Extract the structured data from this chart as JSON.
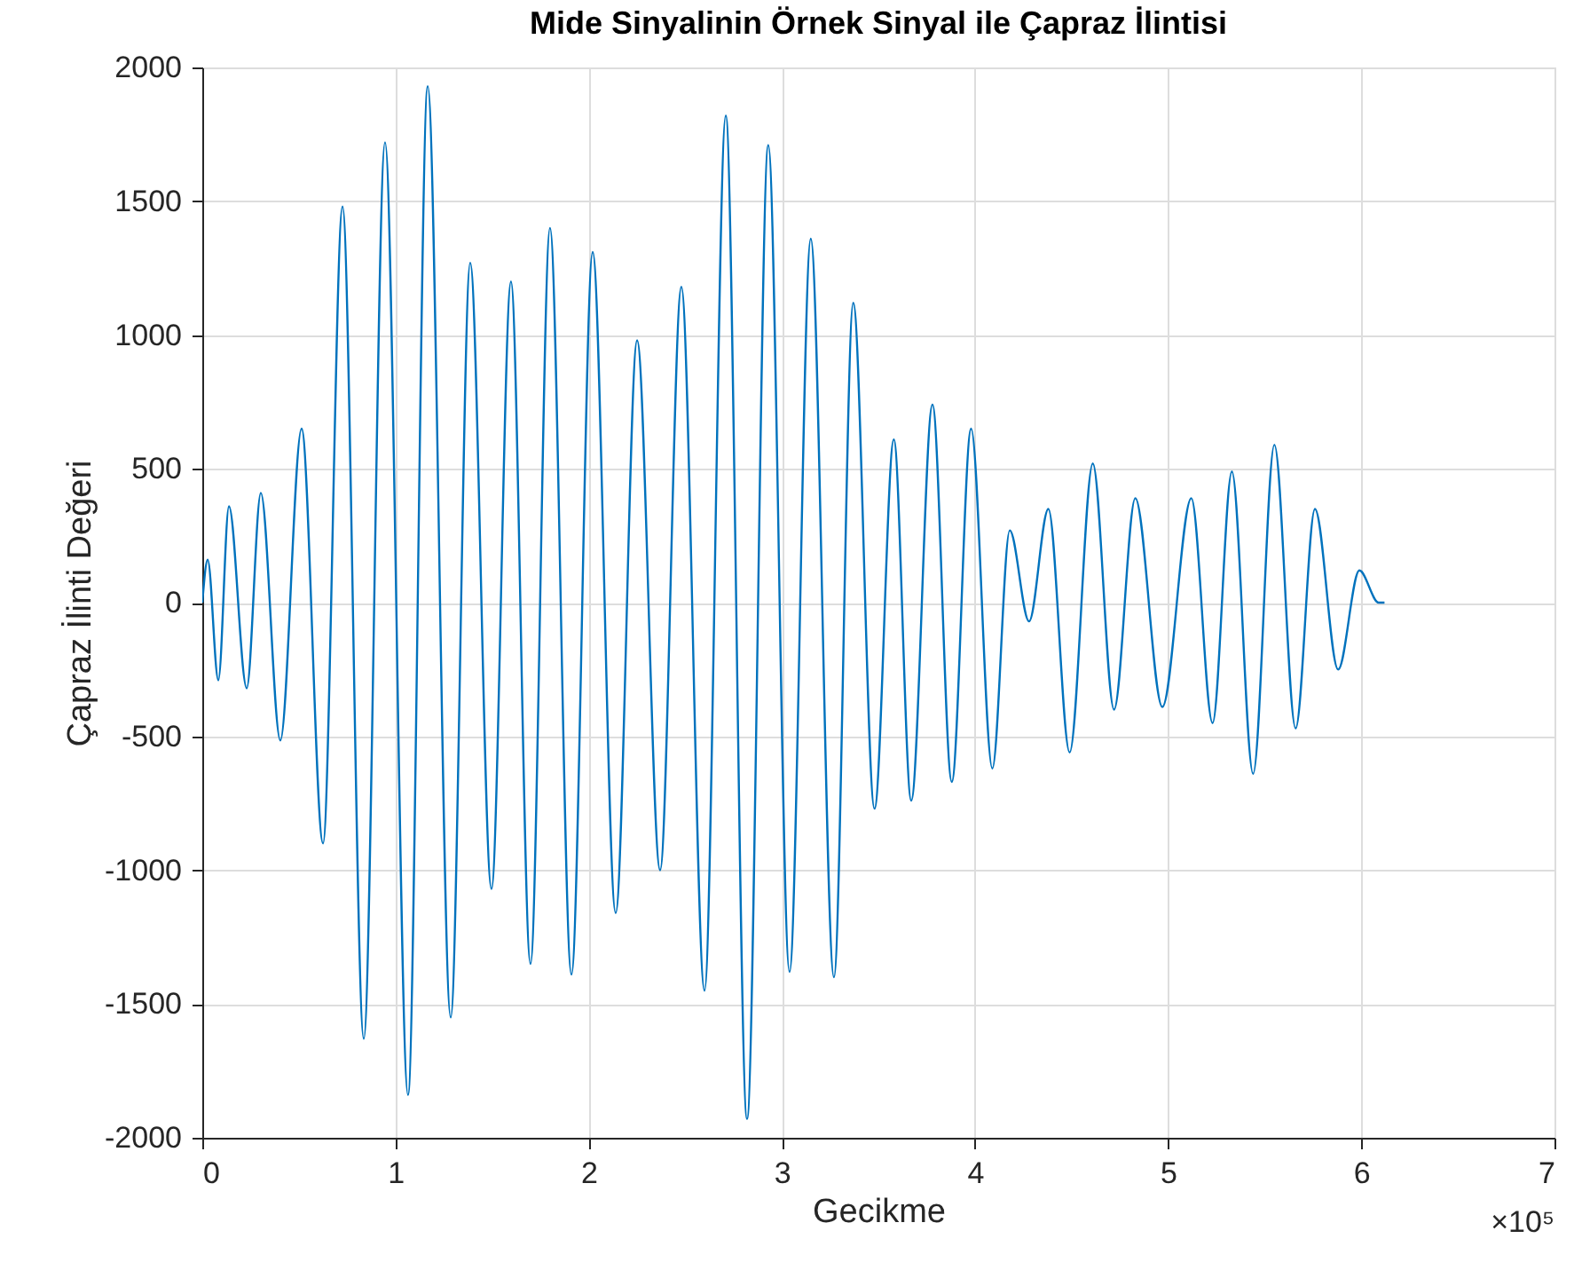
{
  "chart_data": {
    "type": "line",
    "title": "Mide Sinyalinin Örnek Sinyal ile Çapraz İlintisi",
    "xlabel": "Gecikme",
    "ylabel": "Çapraz İlinti Değeri",
    "x": [
      0,
      0.028,
      0.083,
      0.138,
      0.23,
      0.303,
      0.404,
      0.514,
      0.625,
      0.726,
      0.836,
      0.946,
      1.065,
      1.167,
      1.286,
      1.387,
      1.497,
      1.598,
      1.699,
      1.8,
      1.911,
      2.021,
      2.14,
      2.251,
      2.37,
      2.48,
      2.6,
      2.71,
      2.82,
      2.93,
      3.04,
      3.15,
      3.27,
      3.37,
      3.48,
      3.58,
      3.67,
      3.78,
      3.88,
      3.98,
      4.09,
      4.18,
      4.28,
      4.38,
      4.49,
      4.61,
      4.72,
      4.83,
      4.97,
      5.12,
      5.23,
      5.33,
      5.44,
      5.55,
      5.66,
      5.76,
      5.88,
      5.99,
      6.09,
      6.12
    ],
    "series": [
      {
        "color": "#0072bd",
        "values": [
          0,
          160,
          -290,
          360,
          -320,
          410,
          -515,
          650,
          -900,
          1480,
          -1630,
          1720,
          -1840,
          1930,
          -1550,
          1270,
          -1070,
          1200,
          -1350,
          1400,
          -1390,
          1310,
          -1160,
          980,
          -1000,
          1180,
          -1450,
          1820,
          -1930,
          1710,
          -1380,
          1360,
          -1400,
          1120,
          -770,
          610,
          -740,
          740,
          -670,
          650,
          -620,
          270,
          -70,
          350,
          -560,
          520,
          -400,
          390,
          -390,
          390,
          -450,
          490,
          -640,
          590,
          -470,
          350,
          -250,
          120,
          0,
          0
        ]
      }
    ],
    "xlim": [
      0,
      7
    ],
    "ylim": [
      -2000,
      2000
    ],
    "xticks": [
      0,
      1,
      2,
      3,
      4,
      5,
      6,
      7
    ],
    "yticks": [
      -2000,
      -1500,
      -1000,
      -500,
      0,
      500,
      1000,
      1500,
      2000
    ],
    "annotations": [
      "×10⁵"
    ],
    "grid": true,
    "marker": "none",
    "line_style": "solid"
  }
}
